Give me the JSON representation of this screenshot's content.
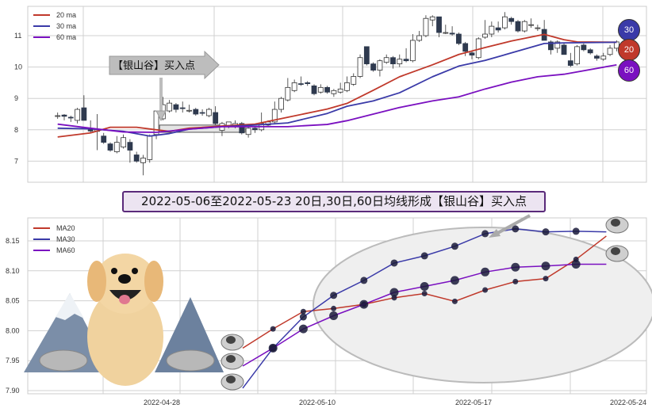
{
  "banner": {
    "text": "2022-05-06至2022-05-23 20日,30日,60日均线形成【银山谷】买入点"
  },
  "colors": {
    "ma20": "#c0392b",
    "ma30": "#3a3aa8",
    "ma60": "#7a10c0",
    "grid": "#d0d0d0",
    "candle_dark": "#2f3a4f"
  },
  "chart_data": [
    {
      "type": "candlestick",
      "title": "",
      "ylim": [
        6.4,
        11.9
      ],
      "yticks": [
        "7",
        "8",
        "9",
        "10",
        "11"
      ],
      "legend": {
        "placement": "top-left",
        "entries": [
          "20 ma",
          "30 ma",
          "60 ma"
        ]
      },
      "annotation": {
        "text": "【银山谷】买入点"
      },
      "badges": [
        "30",
        "20",
        "60"
      ],
      "ohlc": [
        [
          8.45,
          8.45,
          8.55,
          8.35
        ],
        [
          8.47,
          8.43,
          8.5,
          8.3
        ],
        [
          8.4,
          8.38,
          8.45,
          8.25
        ],
        [
          8.3,
          8.65,
          8.7,
          8.2
        ],
        [
          8.7,
          8.3,
          9.1,
          8.3
        ],
        [
          8.0,
          7.96,
          8.3,
          7.9
        ],
        [
          7.95,
          8.0,
          8.5,
          7.35
        ],
        [
          7.8,
          7.6,
          7.9,
          7.55
        ],
        [
          7.55,
          7.35,
          7.6,
          7.3
        ],
        [
          7.3,
          7.6,
          7.8,
          7.25
        ],
        [
          7.45,
          7.75,
          7.85,
          7.4
        ],
        [
          7.6,
          7.35,
          7.7,
          6.95
        ],
        [
          7.2,
          7.0,
          7.3,
          6.95
        ],
        [
          6.95,
          7.1,
          7.2,
          6.55
        ],
        [
          7.05,
          7.8,
          7.85,
          6.95
        ],
        [
          7.85,
          8.6,
          8.6,
          7.7
        ],
        [
          8.35,
          8.8,
          9.05,
          8.3
        ],
        [
          8.6,
          8.85,
          8.95,
          8.55
        ],
        [
          8.8,
          8.65,
          8.85,
          8.55
        ],
        [
          8.7,
          8.68,
          8.9,
          8.55
        ],
        [
          8.6,
          8.62,
          8.8,
          8.55
        ],
        [
          8.65,
          8.5,
          8.7,
          8.45
        ],
        [
          8.55,
          8.53,
          8.65,
          8.45
        ],
        [
          8.45,
          8.65,
          8.7,
          8.4
        ],
        [
          8.55,
          8.2,
          8.75,
          8.15
        ],
        [
          7.98,
          8.2,
          8.25,
          7.8
        ],
        [
          8.1,
          8.25,
          8.25,
          8.05
        ],
        [
          8.1,
          8.2,
          8.3,
          8.05
        ],
        [
          8.2,
          7.9,
          8.25,
          7.85
        ],
        [
          7.85,
          8.05,
          8.1,
          7.75
        ],
        [
          8.05,
          8.0,
          8.1,
          7.9
        ],
        [
          8.0,
          8.2,
          8.55,
          7.95
        ],
        [
          8.15,
          8.25,
          8.3,
          8.1
        ],
        [
          8.25,
          8.65,
          8.9,
          8.2
        ],
        [
          8.65,
          9.0,
          9.05,
          8.55
        ],
        [
          8.95,
          9.35,
          9.65,
          8.9
        ],
        [
          9.25,
          9.5,
          9.6,
          9.2
        ],
        [
          9.47,
          9.45,
          9.7,
          9.4
        ],
        [
          9.5,
          9.47,
          9.55,
          9.4
        ],
        [
          9.4,
          9.15,
          9.45,
          9.1
        ],
        [
          9.2,
          9.35,
          9.45,
          9.15
        ],
        [
          9.35,
          9.2,
          9.4,
          9.15
        ],
        [
          9.15,
          9.25,
          9.3,
          9.05
        ],
        [
          9.2,
          9.3,
          9.5,
          9.15
        ],
        [
          9.25,
          9.5,
          9.7,
          9.2
        ],
        [
          9.45,
          9.7,
          9.8,
          9.4
        ],
        [
          9.7,
          10.3,
          10.4,
          9.65
        ],
        [
          10.65,
          10.1,
          10.65,
          10.05
        ],
        [
          10.1,
          9.9,
          10.15,
          9.85
        ],
        [
          9.9,
          10.2,
          10.25,
          9.7
        ],
        [
          10.15,
          10.3,
          10.4,
          10.1
        ],
        [
          10.3,
          10.1,
          10.35,
          9.95
        ],
        [
          10.1,
          10.25,
          10.4,
          10.0
        ],
        [
          10.25,
          10.2,
          10.6,
          10.15
        ],
        [
          10.2,
          10.85,
          11.05,
          10.15
        ],
        [
          10.85,
          11.0,
          11.15,
          10.8
        ],
        [
          11.0,
          11.55,
          11.65,
          10.95
        ],
        [
          11.5,
          11.6,
          11.65,
          11.3
        ],
        [
          11.6,
          11.1,
          11.6,
          10.95
        ],
        [
          11.1,
          11.1,
          11.35,
          11.05
        ],
        [
          11.08,
          11.05,
          11.3,
          11.0
        ],
        [
          11.05,
          10.75,
          11.1,
          10.7
        ],
        [
          10.75,
          10.5,
          10.8,
          10.35
        ],
        [
          10.45,
          10.38,
          10.5,
          10.25
        ],
        [
          10.3,
          10.9,
          10.95,
          10.25
        ],
        [
          10.95,
          11.05,
          11.5,
          10.9
        ],
        [
          11.05,
          11.3,
          11.45,
          10.95
        ],
        [
          11.25,
          11.18,
          11.45,
          11.1
        ],
        [
          11.25,
          11.6,
          11.75,
          11.2
        ],
        [
          11.55,
          11.45,
          11.6,
          11.35
        ],
        [
          11.45,
          11.15,
          11.5,
          11.1
        ],
        [
          11.15,
          11.45,
          11.5,
          11.1
        ],
        [
          11.35,
          11.35,
          11.55,
          11.25
        ],
        [
          11.25,
          11.25,
          11.35,
          11.15
        ],
        [
          11.2,
          10.85,
          11.5,
          10.85
        ],
        [
          10.8,
          10.55,
          10.85,
          10.4
        ],
        [
          10.6,
          10.8,
          10.85,
          10.45
        ],
        [
          10.7,
          10.4,
          10.75,
          10.4
        ],
        [
          10.2,
          10.05,
          10.45,
          10.0
        ],
        [
          10.1,
          10.65,
          10.7,
          10.05
        ],
        [
          10.7,
          10.55,
          10.75,
          10.5
        ],
        [
          10.55,
          10.45,
          10.6,
          10.4
        ],
        [
          10.35,
          10.28,
          10.4,
          10.2
        ],
        [
          10.25,
          10.35,
          10.45,
          10.2
        ],
        [
          10.4,
          10.6,
          10.7,
          10.35
        ],
        [
          10.6,
          10.8,
          10.85,
          10.5
        ]
      ],
      "ma": {
        "20 ma": [
          [
            0,
            7.77
          ],
          [
            5,
            7.9
          ],
          [
            8,
            8.08
          ],
          [
            12,
            8.08
          ],
          [
            15,
            8.0
          ],
          [
            17,
            7.95
          ],
          [
            20,
            8.05
          ],
          [
            25,
            8.12
          ],
          [
            30,
            8.18
          ],
          [
            35,
            8.4
          ],
          [
            41,
            8.66
          ],
          [
            44,
            8.84
          ],
          [
            48,
            9.26
          ],
          [
            52,
            9.69
          ],
          [
            57,
            10.07
          ],
          [
            61,
            10.4
          ],
          [
            65,
            10.62
          ],
          [
            69,
            10.83
          ],
          [
            74,
            11.04
          ],
          [
            77,
            10.87
          ],
          [
            79,
            10.8
          ],
          [
            85,
            10.79
          ]
        ],
        "30 ma": [
          [
            0,
            8.05
          ],
          [
            5,
            8.03
          ],
          [
            10,
            7.95
          ],
          [
            14,
            7.8
          ],
          [
            17,
            7.88
          ],
          [
            20,
            8.02
          ],
          [
            25,
            8.1
          ],
          [
            30,
            8.15
          ],
          [
            35,
            8.22
          ],
          [
            41,
            8.52
          ],
          [
            44,
            8.75
          ],
          [
            48,
            8.92
          ],
          [
            52,
            9.18
          ],
          [
            57,
            9.69
          ],
          [
            61,
            10.03
          ],
          [
            65,
            10.21
          ],
          [
            69,
            10.45
          ],
          [
            74,
            10.75
          ],
          [
            77,
            10.77
          ],
          [
            85,
            10.79
          ]
        ],
        "60 ma": [
          [
            0,
            8.18
          ],
          [
            5,
            8.05
          ],
          [
            10,
            7.93
          ],
          [
            15,
            7.92
          ],
          [
            20,
            8.02
          ],
          [
            25,
            8.1
          ],
          [
            30,
            8.1
          ],
          [
            35,
            8.1
          ],
          [
            41,
            8.17
          ],
          [
            44,
            8.29
          ],
          [
            48,
            8.5
          ],
          [
            52,
            8.71
          ],
          [
            57,
            8.92
          ],
          [
            61,
            9.05
          ],
          [
            65,
            9.3
          ],
          [
            69,
            9.52
          ],
          [
            73,
            9.69
          ],
          [
            77,
            9.77
          ],
          [
            85,
            10.07
          ]
        ]
      }
    },
    {
      "type": "line",
      "title": "",
      "xlabel": "",
      "ylabel": "",
      "ylim": [
        7.895,
        8.19
      ],
      "yticks": [
        "7.90",
        "7.95",
        "8.00",
        "8.05",
        "8.10",
        "8.15"
      ],
      "xticks": [
        "2022-04-28",
        "2022-05-10",
        "2022-05-17",
        "2022-05-24"
      ],
      "legend": {
        "placement": "top-left"
      },
      "series": [
        {
          "name": "MA20",
          "values": [
            7.971,
            8.003,
            8.032,
            8.037,
            8.044,
            8.055,
            8.062,
            8.049,
            8.068,
            8.082,
            8.087,
            8.119,
            8.158
          ]
        },
        {
          "name": "MA30",
          "values": [
            7.904,
            7.971,
            8.023,
            8.059,
            8.084,
            8.113,
            8.125,
            8.141,
            8.162,
            8.17,
            8.165,
            8.166,
            8.165
          ]
        },
        {
          "name": "MA60",
          "values": [
            7.941,
            7.971,
            8.003,
            8.025,
            8.044,
            8.064,
            8.074,
            8.084,
            8.098,
            8.106,
            8.108,
            8.111,
            8.111
          ]
        }
      ]
    }
  ]
}
